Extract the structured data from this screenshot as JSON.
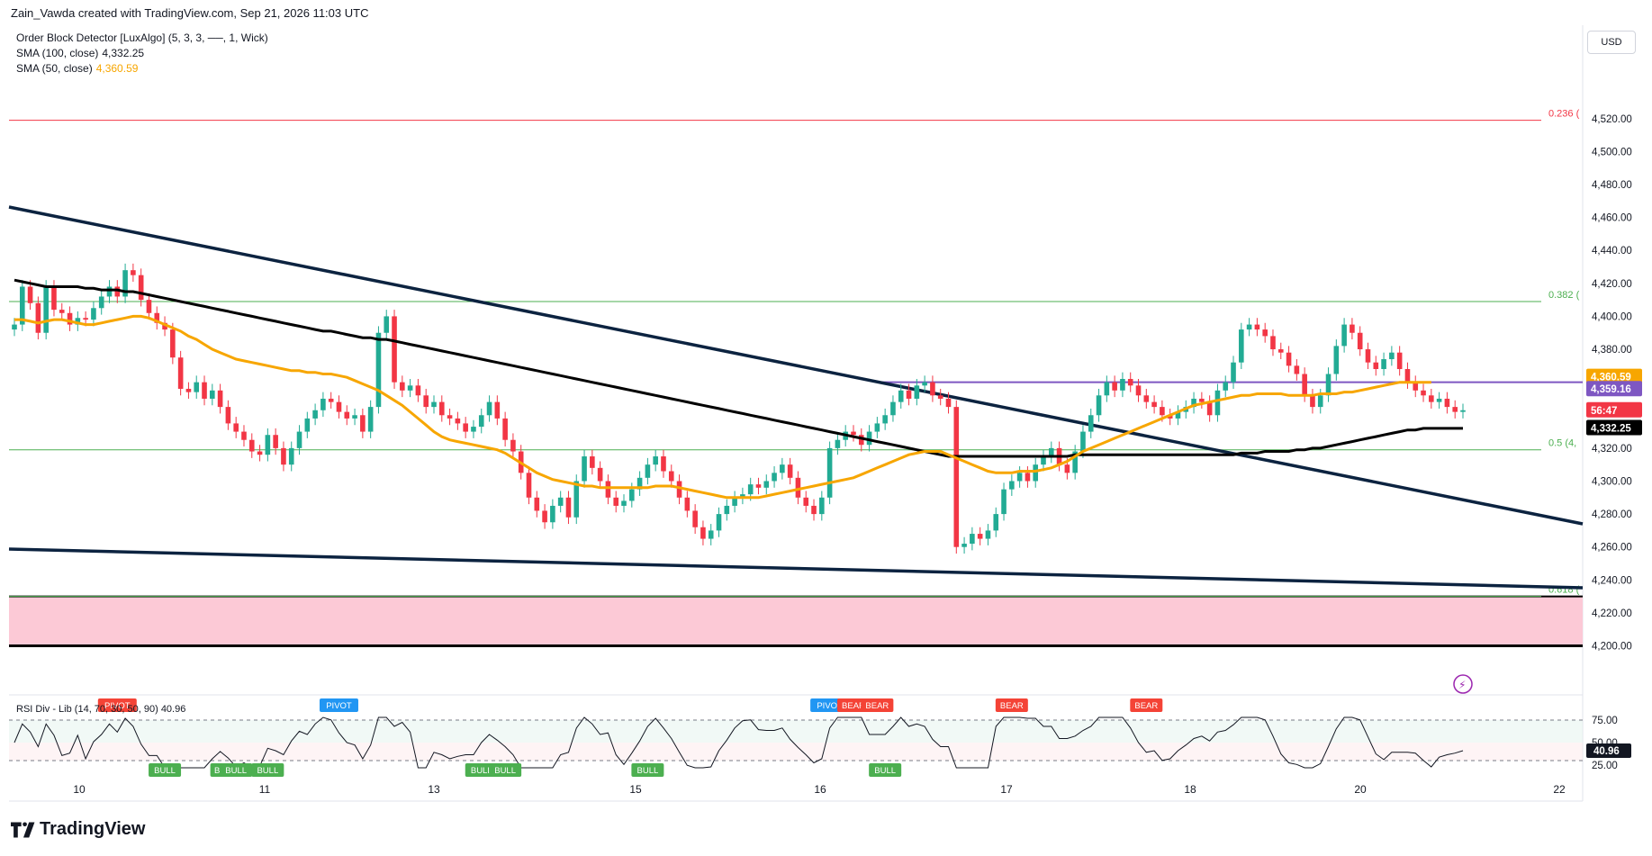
{
  "header": {
    "credit": "Zain_Vawda created with TradingView.com, Sep 21, 2026 11:03 UTC"
  },
  "legend": {
    "indicator1": "Order Block Detector [LuxAlgo] (5, 3, 3, ──, 1, Wick)",
    "sma100_label": "SMA (100, close)",
    "sma100_value": "4,332.25",
    "sma50_label": "SMA (50, close)",
    "sma50_value": "4,360.59"
  },
  "currency": "USD",
  "rsi_legend": {
    "label": "RSI Div - Lib (14, 70, 30, 50, 90)",
    "value": "40.96"
  },
  "brand": "TradingView",
  "colors": {
    "bull": "#22ab94",
    "bear": "#f23645",
    "sma50": "#f7a600",
    "sma100": "#000000",
    "trendline": "#0c2340",
    "order_block": "#fcc9d6",
    "resistance": "#7e57c2",
    "fib": "#4caf50",
    "fib_top": "#f23645"
  },
  "chart_data": {
    "type": "candlestick",
    "y_axis": {
      "range": [
        4185,
        4545
      ],
      "ticks": [
        "4,520.00",
        "4,500.00",
        "4,480.00",
        "4,460.00",
        "4,440.00",
        "4,420.00",
        "4,400.00",
        "4,380.00",
        "4,320.00",
        "4,300.00",
        "4,280.00",
        "4,260.00",
        "4,240.00",
        "4,220.00",
        "4,200.00"
      ]
    },
    "x_axis": {
      "ticks": [
        "10",
        "11",
        "13",
        "15",
        "16",
        "17",
        "18",
        "20",
        "22"
      ]
    },
    "price_labels": [
      {
        "text": "4,360.59",
        "value": 4360.59,
        "color": "#f7a600"
      },
      {
        "text": "4,359.16",
        "value": 4359.16,
        "color": "#7e57c2"
      },
      {
        "text": "56:47",
        "value": 4343,
        "color": "#f23645"
      },
      {
        "text": "4,332.25",
        "value": 4332.25,
        "color": "#000000"
      }
    ],
    "fib_levels": [
      {
        "label": "0.236 (",
        "value": 4519
      },
      {
        "label": "0.382 (",
        "value": 4409
      },
      {
        "label": "0.5 (4,",
        "value": 4319
      },
      {
        "label": "0.618 (",
        "value": 4230
      }
    ],
    "resistance_level": 4360,
    "order_block": [
      4200,
      4230
    ],
    "candles": [
      4395,
      4418,
      4408,
      4390,
      4418,
      4404,
      4402,
      4395,
      4399,
      4398,
      4405,
      4412,
      4418,
      4412,
      4428,
      4425,
      4410,
      4402,
      4396,
      4392,
      4375,
      4356,
      4354,
      4360,
      4350,
      4355,
      4345,
      4335,
      4330,
      4325,
      4318,
      4316,
      4328,
      4320,
      4310,
      4320,
      4330,
      4338,
      4343,
      4350,
      4348,
      4342,
      4338,
      4340,
      4330,
      4345,
      4390,
      4400,
      4360,
      4355,
      4358,
      4352,
      4345,
      4348,
      4340,
      4338,
      4335,
      4330,
      4333,
      4340,
      4348,
      4338,
      4325,
      4318,
      4305,
      4290,
      4282,
      4275,
      4285,
      4290,
      4278,
      4300,
      4315,
      4308,
      4300,
      4290,
      4285,
      4288,
      4295,
      4302,
      4310,
      4315,
      4306,
      4300,
      4290,
      4282,
      4272,
      4265,
      4270,
      4280,
      4285,
      4290,
      4292,
      4298,
      4296,
      4300,
      4305,
      4310,
      4302,
      4290,
      4285,
      4280,
      4290,
      4320,
      4325,
      4330,
      4328,
      4322,
      4330,
      4335,
      4340,
      4348,
      4355,
      4350,
      4358,
      4360,
      4352,
      4350,
      4345,
      4260,
      4262,
      4268,
      4265,
      4270,
      4280,
      4295,
      4300,
      4305,
      4300,
      4310,
      4315,
      4320,
      4310,
      4305,
      4318,
      4330,
      4340,
      4352,
      4360,
      4355,
      4362,
      4358,
      4352,
      4348,
      4345,
      4340,
      4338,
      4342,
      4345,
      4350,
      4348,
      4340,
      4355,
      4360,
      4372,
      4392,
      4395,
      4392,
      4388,
      4380,
      4378,
      4370,
      4365,
      4352,
      4345,
      4352,
      4365,
      4382,
      4395,
      4390,
      4380,
      4372,
      4368,
      4374,
      4378,
      4368,
      4360,
      4355,
      4352,
      4348,
      4350,
      4345,
      4342,
      4343
    ],
    "sma50": [
      4398,
      4398,
      4397,
      4396,
      4397,
      4398,
      4398,
      4397,
      4396,
      4395,
      4395,
      4396,
      4397,
      4398,
      4399,
      4400,
      4400,
      4399,
      4397,
      4395,
      4393,
      4391,
      4388,
      4386,
      4383,
      4380,
      4378,
      4376,
      4374,
      4373,
      4372,
      4371,
      4370,
      4369,
      4368,
      4367,
      4367,
      4366,
      4366,
      4365,
      4365,
      4364,
      4363,
      4361,
      4359,
      4357,
      4355,
      4352,
      4349,
      4346,
      4342,
      4338,
      4334,
      4330,
      4327,
      4325,
      4324,
      4323,
      4322,
      4321,
      4320,
      4319,
      4317,
      4314,
      4311,
      4308,
      4305,
      4303,
      4301,
      4300,
      4299,
      4298,
      4297,
      4297,
      4296,
      4296,
      4296,
      4296,
      4296,
      4296,
      4296,
      4297,
      4297,
      4297,
      4296,
      4295,
      4294,
      4293,
      4292,
      4291,
      4290,
      4290,
      4290,
      4290,
      4290,
      4291,
      4292,
      4293,
      4294,
      4295,
      4296,
      4297,
      4298,
      4299,
      4300,
      4301,
      4302,
      4304,
      4306,
      4308,
      4310,
      4312,
      4314,
      4316,
      4317,
      4318,
      4318,
      4318,
      4316,
      4314,
      4312,
      4310,
      4308,
      4306,
      4305,
      4305,
      4305,
      4306,
      4306,
      4306,
      4307,
      4308,
      4310,
      4312,
      4315,
      4318,
      4320,
      4322,
      4324,
      4326,
      4328,
      4330,
      4332,
      4334,
      4336,
      4338,
      4340,
      4342,
      4344,
      4346,
      4347,
      4348,
      4349,
      4350,
      4351,
      4352,
      4352,
      4353,
      4353,
      4353,
      4353,
      4352,
      4352,
      4352,
      4352,
      4353,
      4353,
      4353,
      4354,
      4354,
      4355,
      4356,
      4357,
      4358,
      4359,
      4360,
      4360,
      4360,
      4360,
      4360
    ],
    "sma100": [
      4422,
      4421,
      4420,
      4419,
      4418,
      4418,
      4418,
      4418,
      4418,
      4417,
      4417,
      4416,
      4416,
      4416,
      4415,
      4415,
      4414,
      4413,
      4412,
      4411,
      4410,
      4409,
      4408,
      4407,
      4406,
      4405,
      4404,
      4403,
      4402,
      4401,
      4400,
      4399,
      4398,
      4397,
      4396,
      4395,
      4394,
      4393,
      4392,
      4391,
      4391,
      4390,
      4389,
      4388,
      4387,
      4387,
      4386,
      4386,
      4385,
      4384,
      4383,
      4382,
      4381,
      4380,
      4379,
      4378,
      4377,
      4376,
      4375,
      4374,
      4373,
      4372,
      4371,
      4370,
      4369,
      4368,
      4367,
      4366,
      4365,
      4364,
      4363,
      4362,
      4361,
      4360,
      4359,
      4358,
      4357,
      4356,
      4355,
      4354,
      4353,
      4352,
      4351,
      4350,
      4349,
      4348,
      4347,
      4346,
      4345,
      4344,
      4343,
      4342,
      4341,
      4340,
      4339,
      4338,
      4337,
      4336,
      4335,
      4334,
      4333,
      4332,
      4331,
      4330,
      4329,
      4328,
      4327,
      4326,
      4325,
      4324,
      4323,
      4322,
      4321,
      4320,
      4319,
      4318,
      4317,
      4316,
      4315,
      4315,
      4315,
      4315,
      4315,
      4315,
      4315,
      4315,
      4315,
      4315,
      4315,
      4315,
      4315,
      4315,
      4315,
      4315,
      4316,
      4316,
      4316,
      4316,
      4316,
      4316,
      4316,
      4316,
      4316,
      4316,
      4316,
      4316,
      4316,
      4316,
      4316,
      4316,
      4316,
      4316,
      4316,
      4316,
      4316,
      4317,
      4317,
      4317,
      4318,
      4318,
      4318,
      4318,
      4319,
      4319,
      4320,
      4320,
      4321,
      4322,
      4323,
      4324,
      4325,
      4326,
      4327,
      4328,
      4329,
      4330,
      4331,
      4331,
      4332,
      4332,
      4332,
      4332,
      4332,
      4332
    ],
    "rsi_levels": {
      "upper": "75.00",
      "mid": "50.00",
      "lower": "25.00",
      "current": "40.96",
      "value": 40.96
    },
    "rsi_signals": [
      {
        "text": "PIVOT",
        "type": "bear",
        "idx": 13
      },
      {
        "text": "BULL",
        "type": "bull",
        "idx": 19
      },
      {
        "text": "BU",
        "type": "bull",
        "idx": 26
      },
      {
        "text": "BULL",
        "type": "bull",
        "idx": 28
      },
      {
        "text": "BULL",
        "type": "bull",
        "idx": 32
      },
      {
        "text": "PIVOT",
        "type": "pivot",
        "idx": 41
      },
      {
        "text": "BULL",
        "type": "bull",
        "idx": 59
      },
      {
        "text": "BULL",
        "type": "bull",
        "idx": 62
      },
      {
        "text": "BULL",
        "type": "bull",
        "idx": 80
      },
      {
        "text": "PIVOT",
        "type": "pivot",
        "idx": 103
      },
      {
        "text": "BEAR",
        "type": "bear",
        "idx": 106
      },
      {
        "text": "BEAR",
        "type": "bear",
        "idx": 109
      },
      {
        "text": "BULL",
        "type": "bull",
        "idx": 110
      },
      {
        "text": "BEAR",
        "type": "bear",
        "idx": 126
      },
      {
        "text": "BEAR",
        "type": "bear",
        "idx": 143
      }
    ]
  }
}
